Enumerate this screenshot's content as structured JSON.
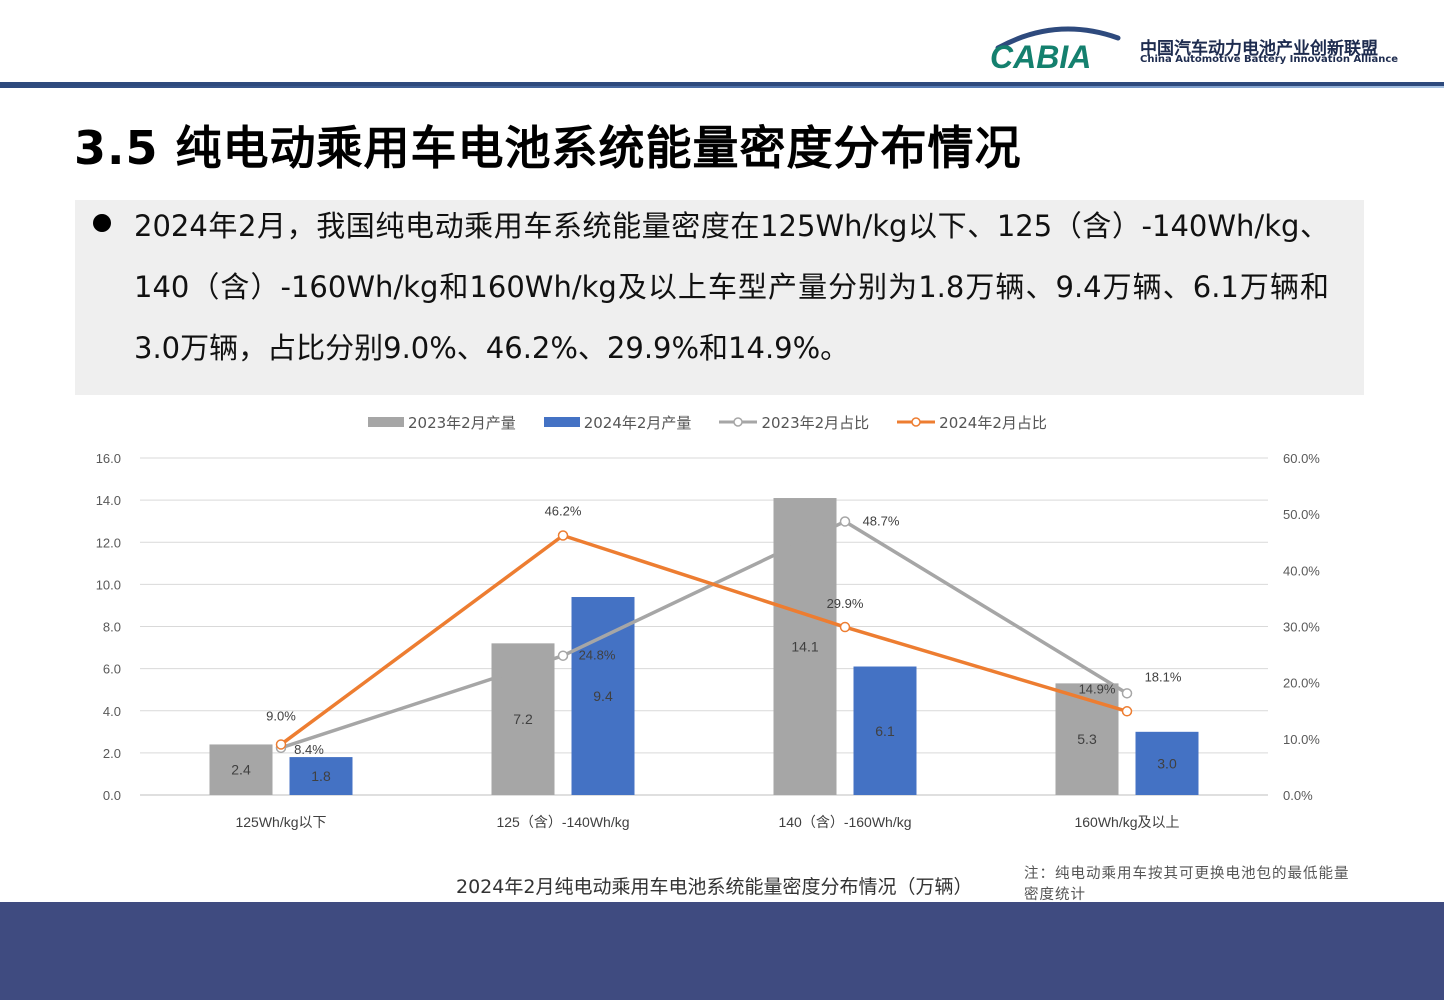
{
  "header": {
    "logo_text": "CABIA",
    "org_name_cn": "中国汽车动力电池产业创新联盟",
    "org_name_en": "China Automotive Battery Innovation Alliance",
    "brand_color": "#2e4a7d",
    "logo_teal": "#14806e"
  },
  "page": {
    "title": "3.5 纯电动乘用车电池系统能量密度分布情况",
    "summary": "2024年2月，我国纯电动乘用车系统能量密度在125Wh/kg以下、125（含）-140Wh/kg、140（含）-160Wh/kg和160Wh/kg及以上车型产量分别为1.8万辆、9.4万辆、6.1万辆和3.0万辆，占比分别9.0%、46.2%、29.9%和14.9%。",
    "caption": "2024年2月纯电动乘用车电池系统能量密度分布情况（万辆）",
    "note": "注：纯电动乘用车按其可更换电池包的最低能量密度统计"
  },
  "legend": {
    "bar_2023": "2023年2月产量",
    "bar_2024": "2024年2月产量",
    "line_2023": "2023年2月占比",
    "line_2024": "2024年2月占比"
  },
  "chart_data": {
    "type": "bar",
    "categories": [
      "125Wh/kg以下",
      "125（含）-140Wh/kg",
      "140（含）-160Wh/kg",
      "160Wh/kg及以上"
    ],
    "series": [
      {
        "name": "2023年2月产量",
        "kind": "bar",
        "axis": "left",
        "color": "#a6a6a6",
        "values": [
          2.4,
          7.2,
          14.1,
          5.3
        ],
        "labels": [
          "2.4",
          "7.2",
          "14.1",
          "5.3"
        ]
      },
      {
        "name": "2024年2月产量",
        "kind": "bar",
        "axis": "left",
        "color": "#4472c4",
        "values": [
          1.8,
          9.4,
          6.1,
          3.0
        ],
        "labels": [
          "1.8",
          "9.4",
          "6.1",
          "3.0"
        ]
      },
      {
        "name": "2023年2月占比",
        "kind": "line",
        "axis": "right",
        "color": "#a6a6a6",
        "values": [
          8.4,
          24.8,
          48.7,
          18.1
        ],
        "labels": [
          "8.4%",
          "24.8%",
          "48.7%",
          "18.1%"
        ]
      },
      {
        "name": "2024年2月占比",
        "kind": "line",
        "axis": "right",
        "color": "#ed7d31",
        "values": [
          9.0,
          46.2,
          29.9,
          14.9
        ],
        "labels": [
          "9.0%",
          "46.2%",
          "29.9%",
          "14.9%"
        ]
      }
    ],
    "y_left": {
      "min": 0,
      "max": 16,
      "ticks": [
        "0.0",
        "2.0",
        "4.0",
        "6.0",
        "8.0",
        "10.0",
        "12.0",
        "14.0",
        "16.0"
      ]
    },
    "y_right": {
      "min": 0,
      "max": 60,
      "ticks": [
        "0.0%",
        "10.0%",
        "20.0%",
        "30.0%",
        "40.0%",
        "50.0%",
        "60.0%"
      ]
    },
    "grid": true,
    "legend_position": "top"
  }
}
